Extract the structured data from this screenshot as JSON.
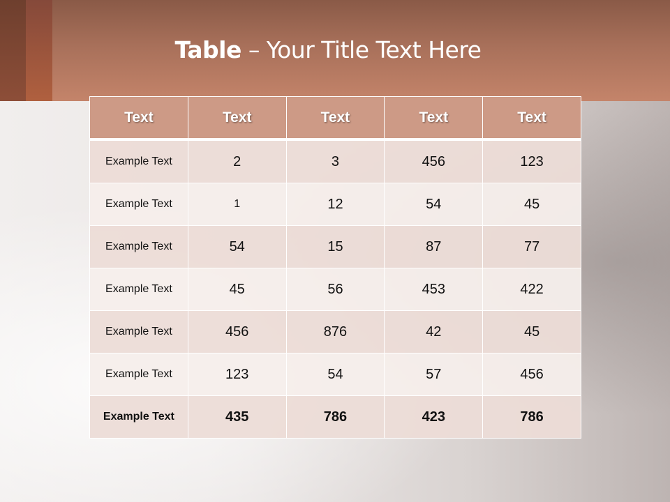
{
  "slide": {
    "title_bold": "Table",
    "title_rest": " – Your Title Text Here",
    "colors": {
      "header_fill": "#cd9a86",
      "band": "#a8705a",
      "row_odd": "#ecdcd7",
      "row_even": "#f6eeeb"
    }
  },
  "table": {
    "headers": [
      "Text",
      "Text",
      "Text",
      "Text",
      "Text"
    ],
    "rows": [
      [
        "Example Text",
        "2",
        "3",
        "456",
        "123"
      ],
      [
        "Example Text",
        "1",
        "12",
        "54",
        "45"
      ],
      [
        "Example Text",
        "54",
        "15",
        "87",
        "77"
      ],
      [
        "Example Text",
        "45",
        "56",
        "453",
        "422"
      ],
      [
        "Example Text",
        "456",
        "876",
        "42",
        "45"
      ],
      [
        "Example Text",
        "123",
        "54",
        "57",
        "456"
      ],
      [
        "Example Text",
        "435",
        "786",
        "423",
        "786"
      ]
    ]
  }
}
